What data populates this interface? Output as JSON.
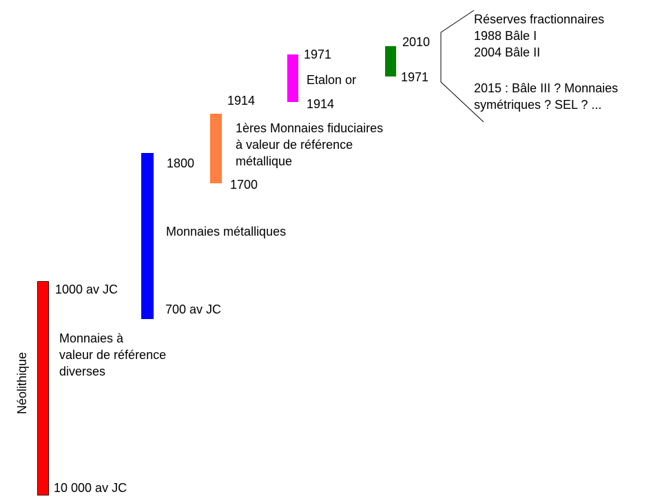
{
  "colors": {
    "neolithique": "#ff0000",
    "metalliques": "#0000ff",
    "fiduciaires": "#ff8040",
    "etalon_or": "#ff00ff",
    "reserves": "#008000"
  },
  "periods": {
    "neolithique": {
      "side_label": "Néolithique",
      "start": "10 000 av JC",
      "end": "1000 av JC",
      "description": [
        "Monnaies à",
        "valeur de référence",
        "diverses"
      ]
    },
    "metalliques": {
      "start": "700 av JC",
      "end": "1800",
      "description": "Monnaies métalliques"
    },
    "fiduciaires": {
      "start": "1700",
      "end": "1914",
      "description": [
        "1ères Monnaies fiduciaires",
        "à valeur de référence",
        "métallique"
      ]
    },
    "etalon_or": {
      "start": "1914",
      "end": "1971",
      "description": "Etalon or"
    },
    "reserves": {
      "start": "1971",
      "end": "2010",
      "description": [
        "Réserves fractionnaires",
        "1988 Bâle I",
        "2004 Bâle II",
        "",
        "2015 : Bâle III ? Monnaies",
        "symétriques ? SEL ? ..."
      ]
    }
  }
}
